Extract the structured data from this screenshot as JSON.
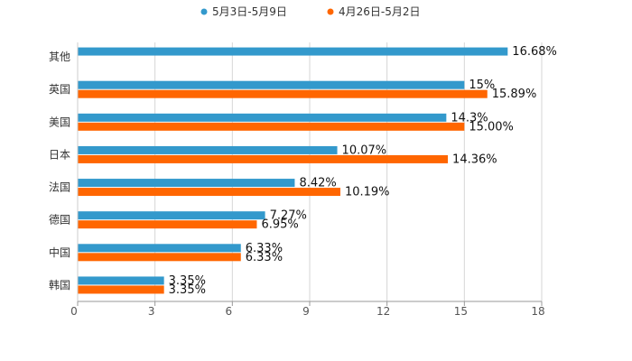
{
  "chart_data": {
    "type": "bar",
    "orientation": "horizontal",
    "categories": [
      "其他",
      "英国",
      "美国",
      "日本",
      "法国",
      "德国",
      "中国",
      "韩国"
    ],
    "series": [
      {
        "name": "5月3日-5月9日",
        "color": "#3399cc",
        "values": [
          16.68,
          15,
          14.3,
          10.07,
          8.42,
          7.27,
          6.33,
          3.35
        ],
        "labels": [
          "16.68%",
          "15%",
          "14.3%",
          "10.07%",
          "8.42%",
          "7.27%",
          "6.33%",
          "3.35%"
        ]
      },
      {
        "name": "4月26日-5月2日",
        "color": "#ff6600",
        "values": [
          null,
          15.89,
          15.0,
          14.36,
          10.19,
          6.95,
          6.33,
          3.35
        ],
        "labels": [
          null,
          "15.89%",
          "15.00%",
          "14.36%",
          "10.19%",
          "6.95%",
          "6.33%",
          "3.35%"
        ]
      }
    ],
    "xlim": [
      0,
      18
    ],
    "xticks": [
      0,
      3,
      6,
      9,
      12,
      15,
      18
    ],
    "tick_labels": [
      "0",
      "3",
      "6",
      "9",
      "12",
      "15",
      "18"
    ],
    "grid": true,
    "legend_position": "top-center",
    "title": "",
    "xlabel": "",
    "ylabel": ""
  }
}
